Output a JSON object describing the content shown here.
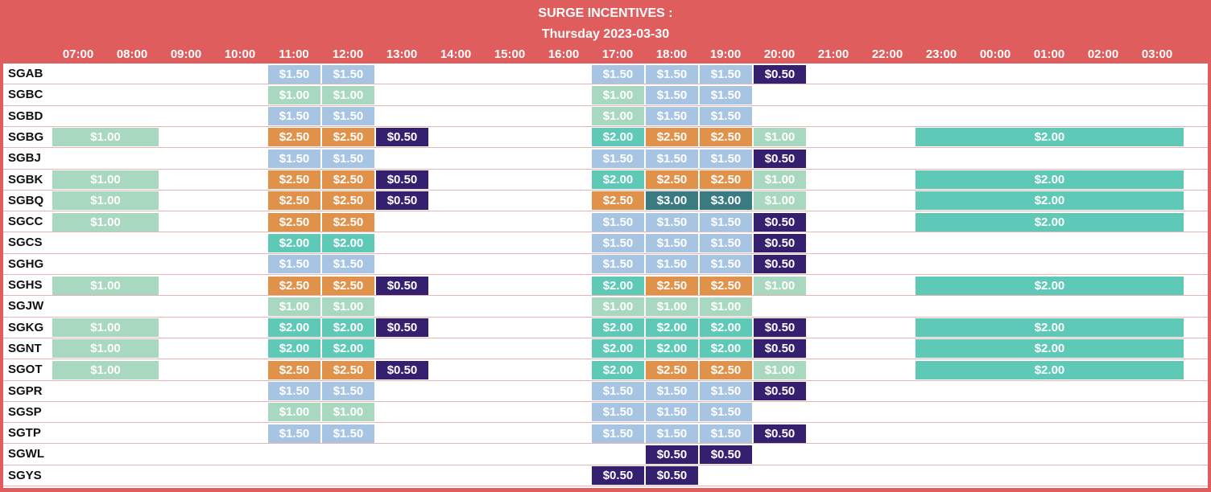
{
  "header": {
    "title": "SURGE INCENTIVES :",
    "date": "Thursday 2023-03-30"
  },
  "hours": [
    "07:00",
    "08:00",
    "09:00",
    "10:00",
    "11:00",
    "12:00",
    "13:00",
    "14:00",
    "15:00",
    "16:00",
    "17:00",
    "18:00",
    "19:00",
    "20:00",
    "21:00",
    "22:00",
    "23:00",
    "00:00",
    "01:00",
    "02:00",
    "03:00"
  ],
  "colors": {
    "header_bg": "#e05d5d",
    "1.00": "#a9d8c1",
    "1.50": "#a7c5e3",
    "2.00": "#5ec9b7",
    "2.50": "#e0914a",
    "3.00": "#3a7b82",
    "0.50": "#352070"
  },
  "rows": [
    {
      "code": "SGAB",
      "cells": [
        {
          "s": 4,
          "e": 5,
          "v": "$1.50"
        },
        {
          "s": 5,
          "e": 6,
          "v": "$1.50"
        },
        {
          "s": 10,
          "e": 11,
          "v": "$1.50"
        },
        {
          "s": 11,
          "e": 12,
          "v": "$1.50"
        },
        {
          "s": 12,
          "e": 13,
          "v": "$1.50"
        },
        {
          "s": 13,
          "e": 14,
          "v": "$0.50"
        }
      ]
    },
    {
      "code": "SGBC",
      "cells": [
        {
          "s": 4,
          "e": 5,
          "v": "$1.00"
        },
        {
          "s": 5,
          "e": 6,
          "v": "$1.00"
        },
        {
          "s": 10,
          "e": 11,
          "v": "$1.00"
        },
        {
          "s": 11,
          "e": 12,
          "v": "$1.50"
        },
        {
          "s": 12,
          "e": 13,
          "v": "$1.50"
        }
      ]
    },
    {
      "code": "SGBD",
      "cells": [
        {
          "s": 4,
          "e": 5,
          "v": "$1.50"
        },
        {
          "s": 5,
          "e": 6,
          "v": "$1.50"
        },
        {
          "s": 10,
          "e": 11,
          "v": "$1.00"
        },
        {
          "s": 11,
          "e": 12,
          "v": "$1.50"
        },
        {
          "s": 12,
          "e": 13,
          "v": "$1.50"
        }
      ]
    },
    {
      "code": "SGBG",
      "cells": [
        {
          "s": 0,
          "e": 2,
          "v": "$1.00"
        },
        {
          "s": 4,
          "e": 5,
          "v": "$2.50"
        },
        {
          "s": 5,
          "e": 6,
          "v": "$2.50"
        },
        {
          "s": 6,
          "e": 7,
          "v": "$0.50"
        },
        {
          "s": 10,
          "e": 11,
          "v": "$2.00"
        },
        {
          "s": 11,
          "e": 12,
          "v": "$2.50"
        },
        {
          "s": 12,
          "e": 13,
          "v": "$2.50"
        },
        {
          "s": 13,
          "e": 14,
          "v": "$1.00"
        },
        {
          "s": 16,
          "e": 21,
          "v": "$2.00"
        }
      ]
    },
    {
      "code": "SGBJ",
      "cells": [
        {
          "s": 4,
          "e": 5,
          "v": "$1.50"
        },
        {
          "s": 5,
          "e": 6,
          "v": "$1.50"
        },
        {
          "s": 10,
          "e": 11,
          "v": "$1.50"
        },
        {
          "s": 11,
          "e": 12,
          "v": "$1.50"
        },
        {
          "s": 12,
          "e": 13,
          "v": "$1.50"
        },
        {
          "s": 13,
          "e": 14,
          "v": "$0.50"
        }
      ]
    },
    {
      "code": "SGBK",
      "cells": [
        {
          "s": 0,
          "e": 2,
          "v": "$1.00"
        },
        {
          "s": 4,
          "e": 5,
          "v": "$2.50"
        },
        {
          "s": 5,
          "e": 6,
          "v": "$2.50"
        },
        {
          "s": 6,
          "e": 7,
          "v": "$0.50"
        },
        {
          "s": 10,
          "e": 11,
          "v": "$2.00"
        },
        {
          "s": 11,
          "e": 12,
          "v": "$2.50"
        },
        {
          "s": 12,
          "e": 13,
          "v": "$2.50"
        },
        {
          "s": 13,
          "e": 14,
          "v": "$1.00"
        },
        {
          "s": 16,
          "e": 21,
          "v": "$2.00"
        }
      ]
    },
    {
      "code": "SGBQ",
      "cells": [
        {
          "s": 0,
          "e": 2,
          "v": "$1.00"
        },
        {
          "s": 4,
          "e": 5,
          "v": "$2.50"
        },
        {
          "s": 5,
          "e": 6,
          "v": "$2.50"
        },
        {
          "s": 6,
          "e": 7,
          "v": "$0.50"
        },
        {
          "s": 10,
          "e": 11,
          "v": "$2.50"
        },
        {
          "s": 11,
          "e": 12,
          "v": "$3.00"
        },
        {
          "s": 12,
          "e": 13,
          "v": "$3.00"
        },
        {
          "s": 13,
          "e": 14,
          "v": "$1.00"
        },
        {
          "s": 16,
          "e": 21,
          "v": "$2.00"
        }
      ]
    },
    {
      "code": "SGCC",
      "cells": [
        {
          "s": 0,
          "e": 2,
          "v": "$1.00"
        },
        {
          "s": 4,
          "e": 5,
          "v": "$2.50"
        },
        {
          "s": 5,
          "e": 6,
          "v": "$2.50"
        },
        {
          "s": 10,
          "e": 11,
          "v": "$1.50"
        },
        {
          "s": 11,
          "e": 12,
          "v": "$1.50"
        },
        {
          "s": 12,
          "e": 13,
          "v": "$1.50"
        },
        {
          "s": 13,
          "e": 14,
          "v": "$0.50"
        },
        {
          "s": 16,
          "e": 21,
          "v": "$2.00"
        }
      ]
    },
    {
      "code": "SGCS",
      "cells": [
        {
          "s": 4,
          "e": 5,
          "v": "$2.00"
        },
        {
          "s": 5,
          "e": 6,
          "v": "$2.00"
        },
        {
          "s": 10,
          "e": 11,
          "v": "$1.50"
        },
        {
          "s": 11,
          "e": 12,
          "v": "$1.50"
        },
        {
          "s": 12,
          "e": 13,
          "v": "$1.50"
        },
        {
          "s": 13,
          "e": 14,
          "v": "$0.50"
        }
      ]
    },
    {
      "code": "SGHG",
      "cells": [
        {
          "s": 4,
          "e": 5,
          "v": "$1.50"
        },
        {
          "s": 5,
          "e": 6,
          "v": "$1.50"
        },
        {
          "s": 10,
          "e": 11,
          "v": "$1.50"
        },
        {
          "s": 11,
          "e": 12,
          "v": "$1.50"
        },
        {
          "s": 12,
          "e": 13,
          "v": "$1.50"
        },
        {
          "s": 13,
          "e": 14,
          "v": "$0.50"
        }
      ]
    },
    {
      "code": "SGHS",
      "cells": [
        {
          "s": 0,
          "e": 2,
          "v": "$1.00"
        },
        {
          "s": 4,
          "e": 5,
          "v": "$2.50"
        },
        {
          "s": 5,
          "e": 6,
          "v": "$2.50"
        },
        {
          "s": 6,
          "e": 7,
          "v": "$0.50"
        },
        {
          "s": 10,
          "e": 11,
          "v": "$2.00"
        },
        {
          "s": 11,
          "e": 12,
          "v": "$2.50"
        },
        {
          "s": 12,
          "e": 13,
          "v": "$2.50"
        },
        {
          "s": 13,
          "e": 14,
          "v": "$1.00"
        },
        {
          "s": 16,
          "e": 21,
          "v": "$2.00"
        }
      ]
    },
    {
      "code": "SGJW",
      "cells": [
        {
          "s": 4,
          "e": 5,
          "v": "$1.00"
        },
        {
          "s": 5,
          "e": 6,
          "v": "$1.00"
        },
        {
          "s": 10,
          "e": 11,
          "v": "$1.00"
        },
        {
          "s": 11,
          "e": 12,
          "v": "$1.00"
        },
        {
          "s": 12,
          "e": 13,
          "v": "$1.00"
        }
      ]
    },
    {
      "code": "SGKG",
      "cells": [
        {
          "s": 0,
          "e": 2,
          "v": "$1.00"
        },
        {
          "s": 4,
          "e": 5,
          "v": "$2.00"
        },
        {
          "s": 5,
          "e": 6,
          "v": "$2.00"
        },
        {
          "s": 6,
          "e": 7,
          "v": "$0.50"
        },
        {
          "s": 10,
          "e": 11,
          "v": "$2.00"
        },
        {
          "s": 11,
          "e": 12,
          "v": "$2.00"
        },
        {
          "s": 12,
          "e": 13,
          "v": "$2.00"
        },
        {
          "s": 13,
          "e": 14,
          "v": "$0.50"
        },
        {
          "s": 16,
          "e": 21,
          "v": "$2.00"
        }
      ]
    },
    {
      "code": "SGNT",
      "cells": [
        {
          "s": 0,
          "e": 2,
          "v": "$1.00"
        },
        {
          "s": 4,
          "e": 5,
          "v": "$2.00"
        },
        {
          "s": 5,
          "e": 6,
          "v": "$2.00"
        },
        {
          "s": 10,
          "e": 11,
          "v": "$2.00"
        },
        {
          "s": 11,
          "e": 12,
          "v": "$2.00"
        },
        {
          "s": 12,
          "e": 13,
          "v": "$2.00"
        },
        {
          "s": 13,
          "e": 14,
          "v": "$0.50"
        },
        {
          "s": 16,
          "e": 21,
          "v": "$2.00"
        }
      ]
    },
    {
      "code": "SGOT",
      "cells": [
        {
          "s": 0,
          "e": 2,
          "v": "$1.00"
        },
        {
          "s": 4,
          "e": 5,
          "v": "$2.50"
        },
        {
          "s": 5,
          "e": 6,
          "v": "$2.50"
        },
        {
          "s": 6,
          "e": 7,
          "v": "$0.50"
        },
        {
          "s": 10,
          "e": 11,
          "v": "$2.00"
        },
        {
          "s": 11,
          "e": 12,
          "v": "$2.50"
        },
        {
          "s": 12,
          "e": 13,
          "v": "$2.50"
        },
        {
          "s": 13,
          "e": 14,
          "v": "$1.00"
        },
        {
          "s": 16,
          "e": 21,
          "v": "$2.00"
        }
      ]
    },
    {
      "code": "SGPR",
      "cells": [
        {
          "s": 4,
          "e": 5,
          "v": "$1.50"
        },
        {
          "s": 5,
          "e": 6,
          "v": "$1.50"
        },
        {
          "s": 10,
          "e": 11,
          "v": "$1.50"
        },
        {
          "s": 11,
          "e": 12,
          "v": "$1.50"
        },
        {
          "s": 12,
          "e": 13,
          "v": "$1.50"
        },
        {
          "s": 13,
          "e": 14,
          "v": "$0.50"
        }
      ]
    },
    {
      "code": "SGSP",
      "cells": [
        {
          "s": 4,
          "e": 5,
          "v": "$1.00"
        },
        {
          "s": 5,
          "e": 6,
          "v": "$1.00"
        },
        {
          "s": 10,
          "e": 11,
          "v": "$1.50"
        },
        {
          "s": 11,
          "e": 12,
          "v": "$1.50"
        },
        {
          "s": 12,
          "e": 13,
          "v": "$1.50"
        }
      ]
    },
    {
      "code": "SGTP",
      "cells": [
        {
          "s": 4,
          "e": 5,
          "v": "$1.50"
        },
        {
          "s": 5,
          "e": 6,
          "v": "$1.50"
        },
        {
          "s": 10,
          "e": 11,
          "v": "$1.50"
        },
        {
          "s": 11,
          "e": 12,
          "v": "$1.50"
        },
        {
          "s": 12,
          "e": 13,
          "v": "$1.50"
        },
        {
          "s": 13,
          "e": 14,
          "v": "$0.50"
        }
      ]
    },
    {
      "code": "SGWL",
      "cells": [
        {
          "s": 11,
          "e": 12,
          "v": "$0.50"
        },
        {
          "s": 12,
          "e": 13,
          "v": "$0.50"
        }
      ]
    },
    {
      "code": "SGYS",
      "cells": [
        {
          "s": 10,
          "e": 11,
          "v": "$0.50"
        },
        {
          "s": 11,
          "e": 12,
          "v": "$0.50"
        }
      ]
    }
  ]
}
